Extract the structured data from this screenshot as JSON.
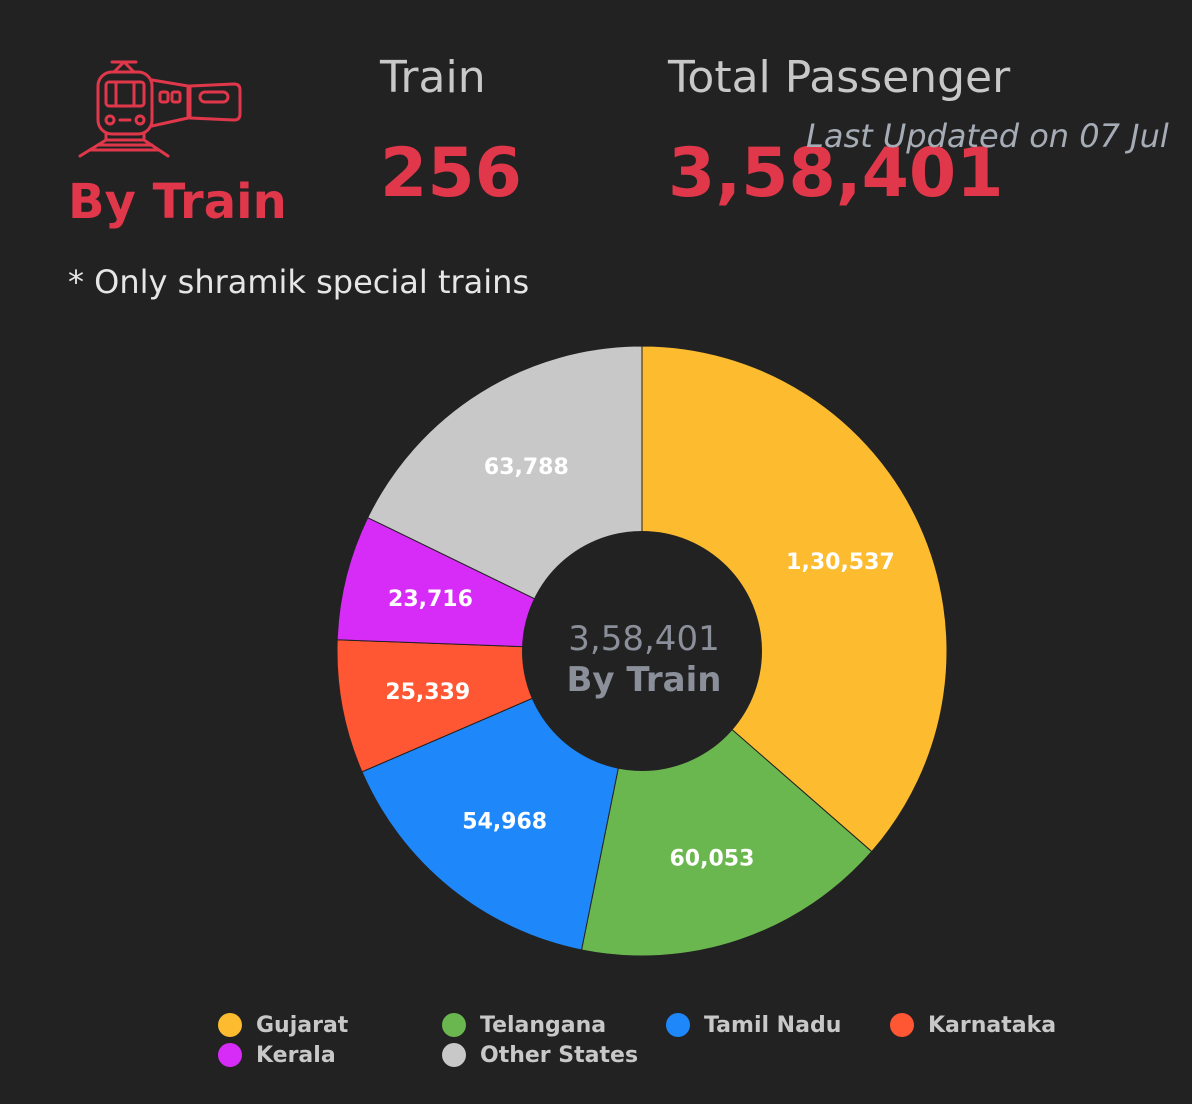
{
  "header": {
    "mode_icon": "train-icon",
    "mode_label": "By Train",
    "train_label": "Train",
    "train_value": "256",
    "passenger_label": "Total Passenger",
    "passenger_value": "3,58,401",
    "last_updated": "Last Updated on 07 Jul",
    "note": "* Only shramik special trains",
    "accent_color": "#e0374a"
  },
  "chart_data": {
    "type": "pie",
    "variant": "donut",
    "center_value": "3,58,401",
    "center_label": "By Train",
    "legend_position": "bottom",
    "slices": [
      {
        "name": "Gujarat",
        "value": 130537,
        "label": "1,30,537",
        "color": "#fdbb2f"
      },
      {
        "name": "Telangana",
        "value": 60053,
        "label": "60,053",
        "color": "#6bb74f"
      },
      {
        "name": "Tamil Nadu",
        "value": 54968,
        "label": "54,968",
        "color": "#1e88fb"
      },
      {
        "name": "Karnataka",
        "value": 25339,
        "label": "25,339",
        "color": "#ff5733"
      },
      {
        "name": "Kerala",
        "value": 23716,
        "label": "23,716",
        "color": "#d72cf7"
      },
      {
        "name": "Other States",
        "value": 63788,
        "label": "63,788",
        "color": "#c8c8c8"
      }
    ]
  }
}
